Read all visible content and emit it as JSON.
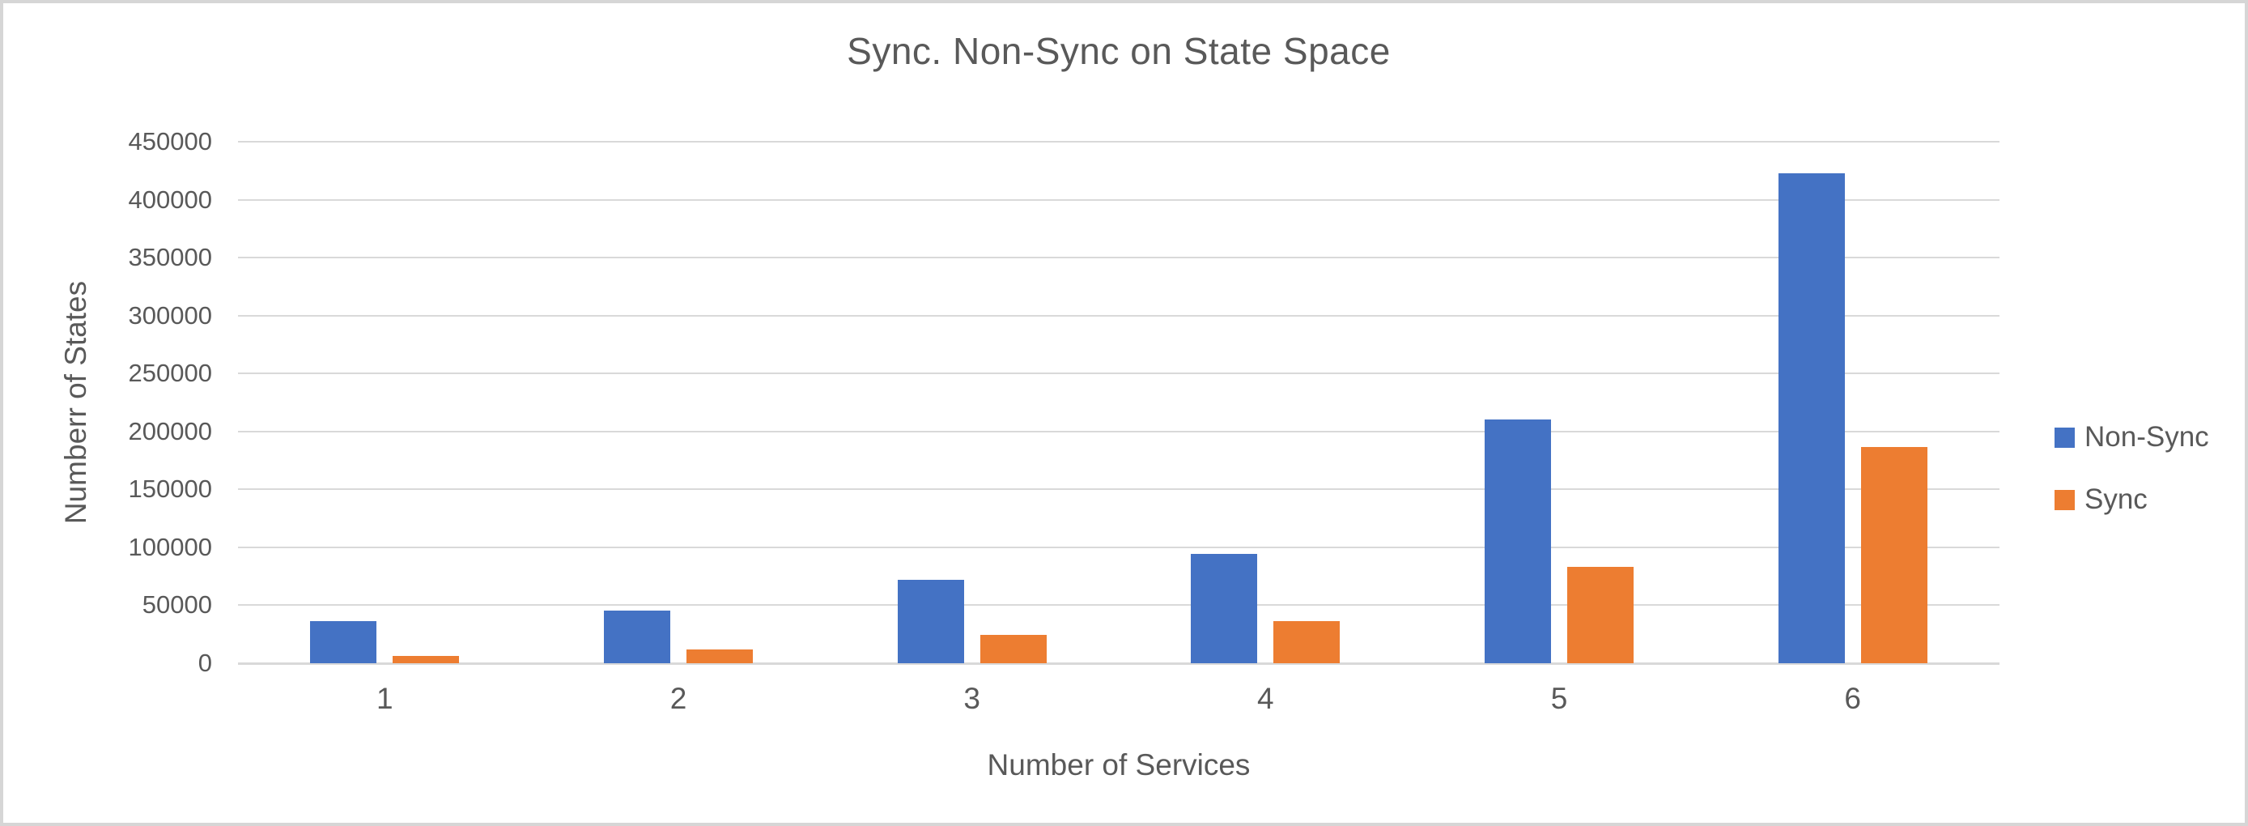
{
  "chart_data": {
    "type": "bar",
    "title": "Sync. Non-Sync on State Space",
    "xlabel": "Number of Services",
    "ylabel": "Numberr of States",
    "categories": [
      "1",
      "2",
      "3",
      "4",
      "5",
      "6"
    ],
    "series": [
      {
        "name": "Non-Sync",
        "color": "#4472C4",
        "values": [
          36500,
          45500,
          72000,
          94000,
          210000,
          423000
        ]
      },
      {
        "name": "Sync",
        "color": "#ED7D31",
        "values": [
          6000,
          12000,
          24500,
          36500,
          83500,
          186500
        ]
      }
    ],
    "ylim": [
      0,
      450000
    ],
    "ytick_step": 50000,
    "yticks": [
      "0",
      "50000",
      "100000",
      "150000",
      "200000",
      "250000",
      "300000",
      "350000",
      "400000",
      "450000"
    ],
    "grid": true,
    "legend_position": "right"
  },
  "colors": {
    "text": "#595959",
    "gridline": "#D9D9D9",
    "frame_border": "#D6D6D6",
    "background": "#FFFFFF"
  }
}
